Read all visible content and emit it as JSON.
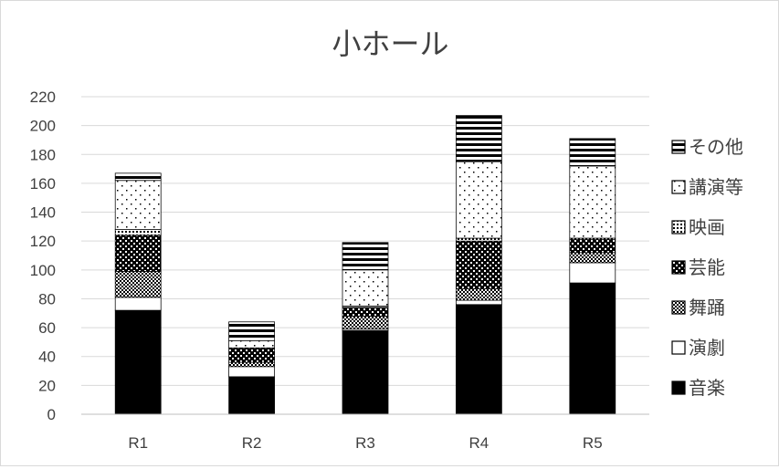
{
  "chart_data": {
    "type": "bar",
    "stacked": true,
    "title": "小ホール",
    "categories": [
      "R1",
      "R2",
      "R3",
      "R4",
      "R5"
    ],
    "ylim": [
      0,
      220
    ],
    "yticks": [
      0,
      20,
      40,
      60,
      80,
      100,
      120,
      140,
      160,
      180,
      200,
      220
    ],
    "grid": true,
    "legend_position": "right",
    "series": [
      {
        "name": "音楽",
        "pattern": "solid",
        "values": [
          72,
          26,
          58,
          76,
          91
        ]
      },
      {
        "name": "演劇",
        "pattern": "white",
        "values": [
          9,
          7,
          1,
          3,
          14
        ]
      },
      {
        "name": "舞踊",
        "pattern": "checker",
        "values": [
          18,
          3,
          9,
          8,
          7
        ]
      },
      {
        "name": "芸能",
        "pattern": "dense-dots",
        "values": [
          25,
          10,
          6,
          33,
          9
        ]
      },
      {
        "name": "映画",
        "pattern": "grid-dots",
        "values": [
          4,
          0,
          1,
          2,
          1
        ]
      },
      {
        "name": "講演等",
        "pattern": "sparse-dots",
        "values": [
          34,
          5,
          25,
          53,
          50
        ]
      },
      {
        "name": "その他",
        "pattern": "stripes",
        "values": [
          5,
          13,
          19,
          32,
          19
        ]
      }
    ]
  }
}
